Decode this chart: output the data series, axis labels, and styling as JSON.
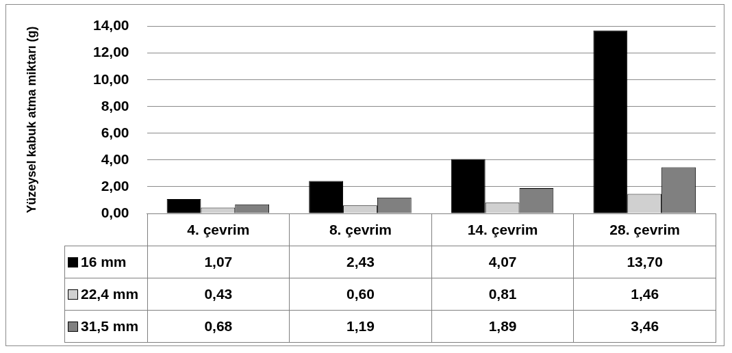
{
  "chart_data": {
    "type": "bar",
    "ylabel": "Yüzeysel kabuk atma miktarı (g)",
    "categories": [
      "4. çevrim",
      "8. çevrim",
      "14. çevrim",
      "28. çevrim"
    ],
    "series": [
      {
        "name": "16 mm",
        "color": "#000000",
        "values": [
          1.07,
          2.43,
          4.07,
          13.7
        ],
        "value_labels": [
          "1,07",
          "2,43",
          "4,07",
          "13,70"
        ]
      },
      {
        "name": "22,4 mm",
        "color": "#d0d0d0",
        "values": [
          0.43,
          0.6,
          0.81,
          1.46
        ],
        "value_labels": [
          "0,43",
          "0,60",
          "0,81",
          "1,46"
        ]
      },
      {
        "name": "31,5 mm",
        "color": "#808080",
        "values": [
          0.68,
          1.19,
          1.89,
          3.46
        ],
        "value_labels": [
          "0,68",
          "1,19",
          "1,89",
          "3,46"
        ]
      }
    ],
    "ylim": [
      0,
      14
    ],
    "yticks": [
      {
        "value": 0,
        "label": "0,00"
      },
      {
        "value": 2,
        "label": "2,00"
      },
      {
        "value": 4,
        "label": "4,00"
      },
      {
        "value": 6,
        "label": "6,00"
      },
      {
        "value": 8,
        "label": "8,00"
      },
      {
        "value": 10,
        "label": "10,00"
      },
      {
        "value": 12,
        "label": "12,00"
      },
      {
        "value": 14,
        "label": "14,00"
      }
    ],
    "grid": "y",
    "legend": "bottom"
  }
}
